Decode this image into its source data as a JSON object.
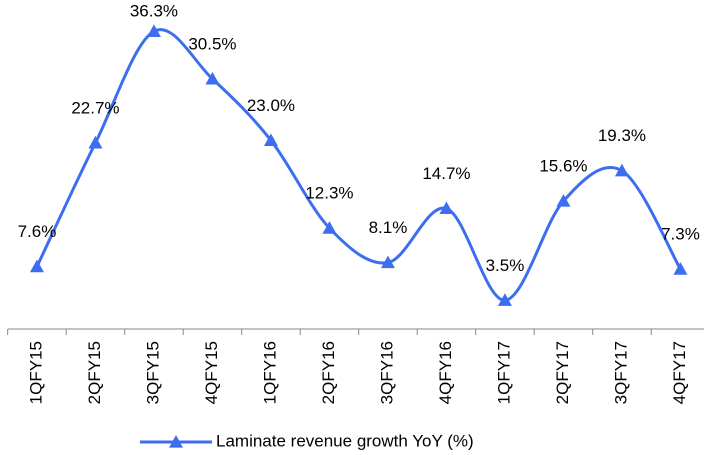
{
  "chart_data": {
    "type": "line",
    "categories": [
      "1QFY15",
      "2QFY15",
      "3QFY15",
      "4QFY15",
      "1QFY16",
      "2QFY16",
      "3QFY16",
      "4QFY16",
      "1QFY17",
      "2QFY17",
      "3QFY17",
      "4QFY17"
    ],
    "series": [
      {
        "name": "Laminate revenue growth YoY (%)",
        "color": "#3d6ef0",
        "values": [
          7.6,
          22.7,
          36.3,
          30.5,
          23.0,
          12.3,
          8.1,
          14.7,
          3.5,
          15.6,
          19.3,
          7.3
        ],
        "value_labels": [
          "7.6%",
          "22.7%",
          "36.3%",
          "30.5%",
          "23.0%",
          "12.3%",
          "8.1%",
          "14.7%",
          "3.5%",
          "15.6%",
          "19.3%",
          "7.3%"
        ]
      }
    ],
    "ylim": [
      0,
      40
    ],
    "legend": "bottom"
  }
}
